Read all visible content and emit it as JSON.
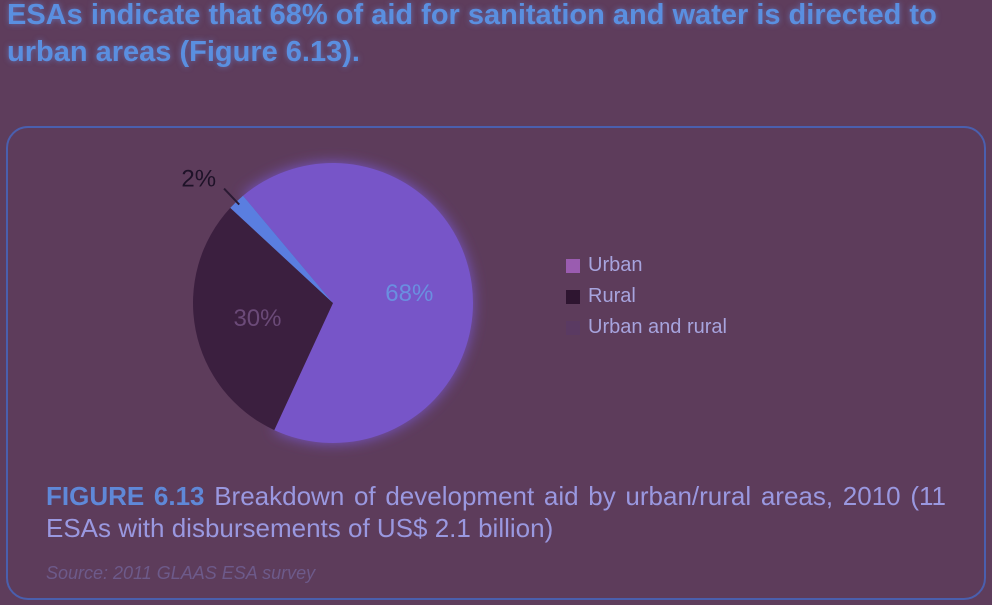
{
  "headline": "ESAs indicate that 68% of aid for sanitation and water is directed to urban areas (Figure 6.13).",
  "chart_data": {
    "type": "pie",
    "title": "",
    "slices": [
      {
        "label": "Urban",
        "value": 68,
        "display": "68%",
        "color": "#7755c8"
      },
      {
        "label": "Rural",
        "value": 30,
        "display": "30%",
        "color": "#3b1f3f"
      },
      {
        "label": "Urban and rural",
        "value": 2,
        "display": "2%",
        "color": "#5a7ee0"
      }
    ],
    "legend": [
      "Urban",
      "Rural",
      "Urban and rural"
    ],
    "legend_colors": [
      "#9a5cb0",
      "#2e1530",
      "#5a3a62"
    ],
    "legend_position": "right"
  },
  "caption": {
    "label": "FIGURE 6.13",
    "text": "Breakdown of development aid by urban/rural areas, 2010 (11 ESAs with disbursements of US$ 2.1 billion)"
  },
  "source": "Source: 2011 GLAAS ESA survey"
}
